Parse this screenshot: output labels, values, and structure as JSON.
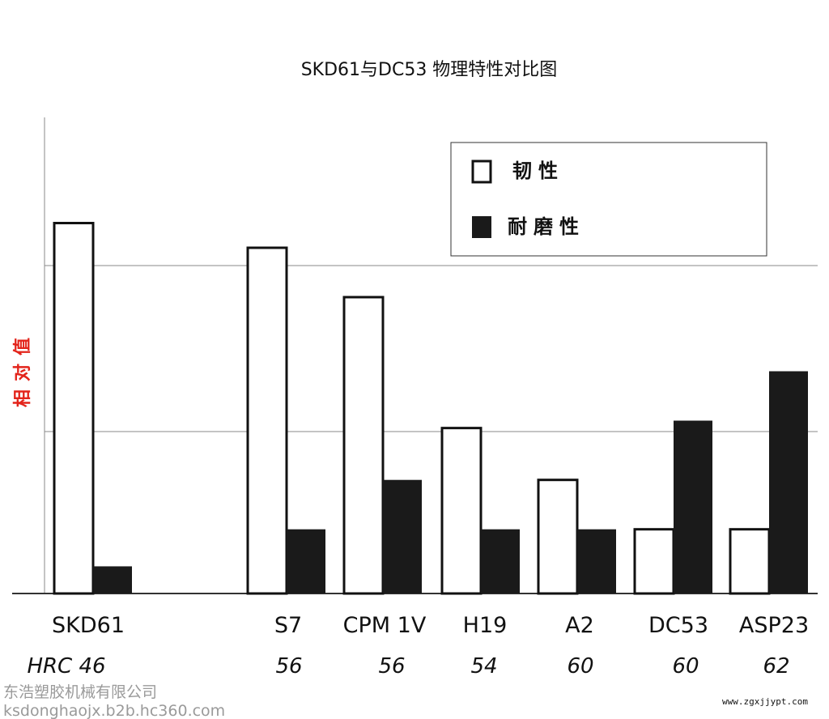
{
  "chart_data": {
    "type": "bar",
    "title": "SKD61与DC53 物理特性对比图",
    "ylabel": "相对值",
    "xlabel": "",
    "ylim": [
      0,
      10
    ],
    "grid": true,
    "legend_position": "top-right",
    "categories": [
      "SKD61",
      "S7",
      "CPM 1V",
      "H19",
      "A2",
      "DC53",
      "ASP23"
    ],
    "secondary_labels": [
      "HRC 46",
      "56",
      "56",
      "54",
      "60",
      "60",
      "62"
    ],
    "series": [
      {
        "name": "韧性",
        "fill": "#ffffff",
        "values": [
          7.5,
          7.0,
          6.0,
          3.35,
          2.3,
          1.3,
          1.3
        ]
      },
      {
        "name": "耐磨性",
        "fill": "#1a1a1a",
        "values": [
          0.55,
          1.3,
          2.3,
          1.3,
          1.3,
          3.5,
          4.5
        ]
      }
    ]
  },
  "watermark_left": [
    "东浩塑胶机械有限公司",
    "ksdonghaojx.b2b.hc360.com"
  ],
  "watermark_right": "www.zgxjjypt.com"
}
